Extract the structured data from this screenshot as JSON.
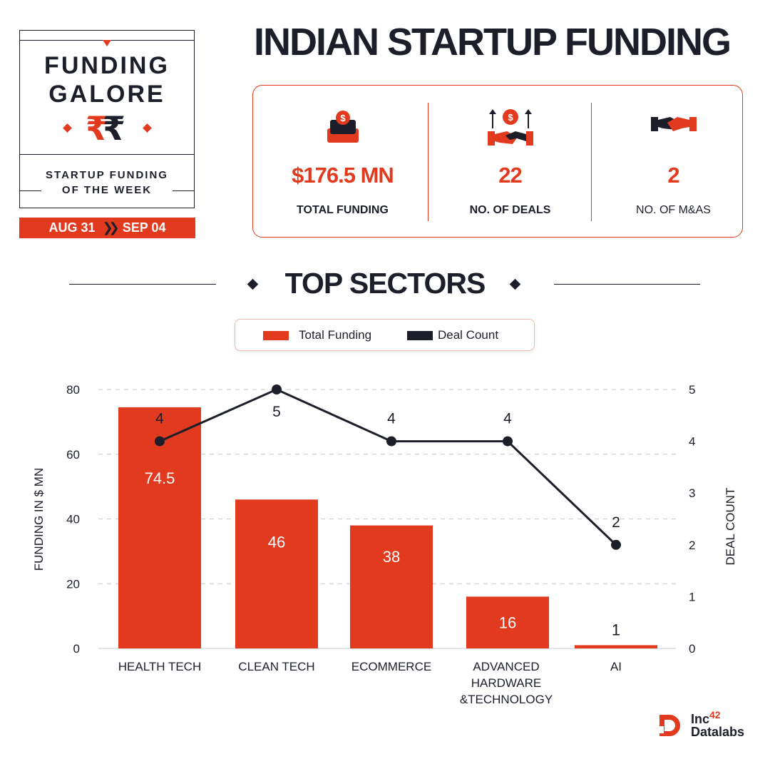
{
  "badge": {
    "line1": "FUNDING",
    "line2": "GALORE",
    "rupee_symbol": "₹",
    "sub1": "STARTUP FUNDING",
    "sub2": "OF THE WEEK"
  },
  "dates": {
    "from": "AUG 31",
    "to": "SEP 04"
  },
  "title": "INDIAN STARTUP FUNDING",
  "stats": [
    {
      "value": "$176.5 MN",
      "label": "TOTAL FUNDING",
      "icon": "money-box-icon"
    },
    {
      "value": "22",
      "label": "NO. OF DEALS",
      "icon": "handshake-deal-icon"
    },
    {
      "value": "2",
      "label": "NO. OF M&AS",
      "icon": "handshake-icon"
    }
  ],
  "section_title": "TOP SECTORS",
  "colors": {
    "accent": "#e13a1e",
    "dark": "#1c1f2a",
    "legend_border": "#f2b8ad"
  },
  "footer": {
    "brand_line1": "Inc",
    "brand_sup": "42",
    "brand_line2": "Datalabs"
  },
  "chart_data": {
    "type": "bar",
    "combo": "bar+line",
    "categories": [
      "HEALTH TECH",
      "CLEAN TECH",
      "ECOMMERCE",
      "ADVANCED HARDWARE &TECHNOLOGY",
      "AI"
    ],
    "category_lines": [
      [
        "HEALTH TECH"
      ],
      [
        "CLEAN TECH"
      ],
      [
        "ECOMMERCE"
      ],
      [
        "ADVANCED",
        "HARDWARE",
        "&TECHNOLOGY"
      ],
      [
        "AI"
      ]
    ],
    "series": [
      {
        "name": "Total Funding",
        "type": "bar",
        "axis": "left",
        "color": "#e13a1e",
        "values": [
          74.5,
          46,
          38,
          16,
          1
        ]
      },
      {
        "name": "Deal Count",
        "type": "line",
        "axis": "right",
        "color": "#1c1f2a",
        "values": [
          4,
          5,
          4,
          4,
          2
        ]
      }
    ],
    "ylabel": "FUNDING IN $ MN",
    "y2label": "DEAL COUNT",
    "ylim": [
      0,
      80
    ],
    "yticks": [
      0,
      20,
      40,
      60,
      80
    ],
    "y2lim": [
      0,
      5
    ],
    "y2ticks": [
      0,
      1,
      2,
      3,
      4,
      5
    ],
    "grid": "horizontal dashed",
    "legend": "top-center"
  }
}
